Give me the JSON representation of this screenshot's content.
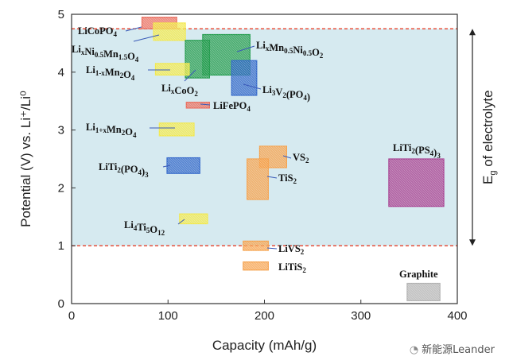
{
  "chart_data": {
    "type": "range-boxes",
    "xlabel": "Capacity (mAh/g)",
    "ylabel": "Potential (V) vs. Li⁺/Li⁰",
    "xlim": [
      0,
      400
    ],
    "ylim": [
      0,
      5
    ],
    "xticks": [
      "0",
      "100",
      "200",
      "300",
      "400"
    ],
    "yticks": [
      "0",
      "1",
      "2",
      "3",
      "4",
      "5"
    ],
    "window_label": "E",
    "window_sub": "g",
    "window_text": " of electrolyte",
    "electrolyte_window": {
      "low": 1.0,
      "high": 4.75,
      "color": "#d6eaf0",
      "line_color": "#e8402a"
    },
    "materials": [
      {
        "name": "LiCoPO4",
        "parts": [
          [
            "LiCoPO",
            ""
          ],
          [
            "4",
            "sub"
          ]
        ],
        "x": [
          73,
          109
        ],
        "y": [
          4.75,
          4.95
        ],
        "color": "#e86a5a"
      },
      {
        "name": "LixNi0.5Mn1.5O4",
        "parts": [
          [
            "Li",
            ""
          ],
          [
            "x",
            "sub"
          ],
          [
            "Ni",
            ""
          ],
          [
            "0.5",
            "sub"
          ],
          [
            "Mn",
            ""
          ],
          [
            "1.5",
            "sub"
          ],
          [
            "O",
            ""
          ],
          [
            "4",
            "sub"
          ]
        ],
        "x": [
          85,
          118
        ],
        "y": [
          4.55,
          4.85
        ],
        "color": "#f2e84a"
      },
      {
        "name": "LixMn0.5Ni0.5O2",
        "parts": [
          [
            "Li",
            ""
          ],
          [
            "x",
            "sub"
          ],
          [
            "Mn",
            ""
          ],
          [
            "0.5",
            "sub"
          ],
          [
            "Ni",
            ""
          ],
          [
            "0.5",
            "sub"
          ],
          [
            "O",
            ""
          ],
          [
            "2",
            "sub"
          ]
        ],
        "x": [
          136,
          185
        ],
        "y": [
          3.95,
          4.65
        ],
        "color": "#1f9a4a"
      },
      {
        "name": "LixCoO2",
        "parts": [
          [
            "Li",
            ""
          ],
          [
            "x",
            "sub"
          ],
          [
            "CoO",
            ""
          ],
          [
            "2",
            "sub"
          ]
        ],
        "x": [
          118,
          143
        ],
        "y": [
          3.9,
          4.55
        ],
        "color": "#1f9a4a"
      },
      {
        "name": "Li1-xMn2O4",
        "parts": [
          [
            "Li",
            ""
          ],
          [
            "1-x",
            "sub"
          ],
          [
            "Mn",
            ""
          ],
          [
            "2",
            "sub"
          ],
          [
            "O",
            ""
          ],
          [
            "4",
            "sub"
          ]
        ],
        "x": [
          87,
          122
        ],
        "y": [
          3.95,
          4.15
        ],
        "color": "#f2e84a"
      },
      {
        "name": "Li3V2(PO4)",
        "parts": [
          [
            "Li",
            ""
          ],
          [
            "3",
            "sub"
          ],
          [
            "V",
            ""
          ],
          [
            "2",
            "sub"
          ],
          [
            "(PO",
            ""
          ],
          [
            "4",
            "sub"
          ],
          [
            ")",
            ""
          ]
        ],
        "x": [
          166,
          192
        ],
        "y": [
          3.6,
          4.2
        ],
        "color": "#2e64c8"
      },
      {
        "name": "LiFePO4",
        "parts": [
          [
            "LiFePO",
            ""
          ],
          [
            "4",
            "sub"
          ]
        ],
        "x": [
          119,
          143
        ],
        "y": [
          3.38,
          3.48
        ],
        "color": "#e86a5a"
      },
      {
        "name": "Li1+xMn2O4",
        "parts": [
          [
            "Li",
            ""
          ],
          [
            "1+x",
            "sub"
          ],
          [
            "Mn",
            ""
          ],
          [
            "2",
            "sub"
          ],
          [
            "O",
            ""
          ],
          [
            "4",
            "sub"
          ]
        ],
        "x": [
          91,
          127
        ],
        "y": [
          2.9,
          3.12
        ],
        "color": "#f2e84a"
      },
      {
        "name": "LiTi2(PO4)3",
        "parts": [
          [
            "LiTi",
            ""
          ],
          [
            "2",
            "sub"
          ],
          [
            "(PO",
            ""
          ],
          [
            "4",
            "sub"
          ],
          [
            ")",
            ""
          ],
          [
            "3",
            "sub"
          ]
        ],
        "x": [
          99,
          133
        ],
        "y": [
          2.25,
          2.52
        ],
        "color": "#2e64c8"
      },
      {
        "name": "VS2",
        "parts": [
          [
            "VS",
            ""
          ],
          [
            "2",
            "sub"
          ]
        ],
        "x": [
          195,
          223
        ],
        "y": [
          2.35,
          2.72
        ],
        "color": "#f5a04a"
      },
      {
        "name": "TiS2",
        "parts": [
          [
            "TiS",
            ""
          ],
          [
            "2",
            "sub"
          ]
        ],
        "x": [
          182,
          204
        ],
        "y": [
          1.8,
          2.5
        ],
        "color": "#f5a04a"
      },
      {
        "name": "LiTi2(PS4)3",
        "parts": [
          [
            "LiTi",
            ""
          ],
          [
            "2",
            "sub"
          ],
          [
            "(PS",
            ""
          ],
          [
            "4",
            "sub"
          ],
          [
            ")",
            ""
          ],
          [
            "3",
            "sub"
          ]
        ],
        "x": [
          329,
          386
        ],
        "y": [
          1.68,
          2.5
        ],
        "color": "#a63b8e"
      },
      {
        "name": "Li4Ti5O12",
        "parts": [
          [
            "Li",
            ""
          ],
          [
            "4",
            "sub"
          ],
          [
            "Ti",
            ""
          ],
          [
            "5",
            "sub"
          ],
          [
            "O",
            ""
          ],
          [
            "12",
            "sub"
          ]
        ],
        "x": [
          112,
          141
        ],
        "y": [
          1.38,
          1.55
        ],
        "color": "#f2e84a"
      },
      {
        "name": "LiVS2",
        "parts": [
          [
            "LiVS",
            ""
          ],
          [
            "2",
            "sub"
          ]
        ],
        "x": [
          178,
          204
        ],
        "y": [
          0.92,
          1.08
        ],
        "color": "#f5a04a"
      },
      {
        "name": "LiTiS2",
        "parts": [
          [
            "LiTiS",
            ""
          ],
          [
            "2",
            "sub"
          ]
        ],
        "x": [
          178,
          204
        ],
        "y": [
          0.58,
          0.72
        ],
        "color": "#f5a04a"
      },
      {
        "name": "Graphite",
        "parts": [
          [
            "Graphite",
            ""
          ]
        ],
        "x": [
          348,
          382
        ],
        "y": [
          0.05,
          0.35
        ],
        "color": "#b0b0b0"
      }
    ]
  },
  "watermark": {
    "icon": "wechat-icon",
    "text": "新能源Leander"
  }
}
